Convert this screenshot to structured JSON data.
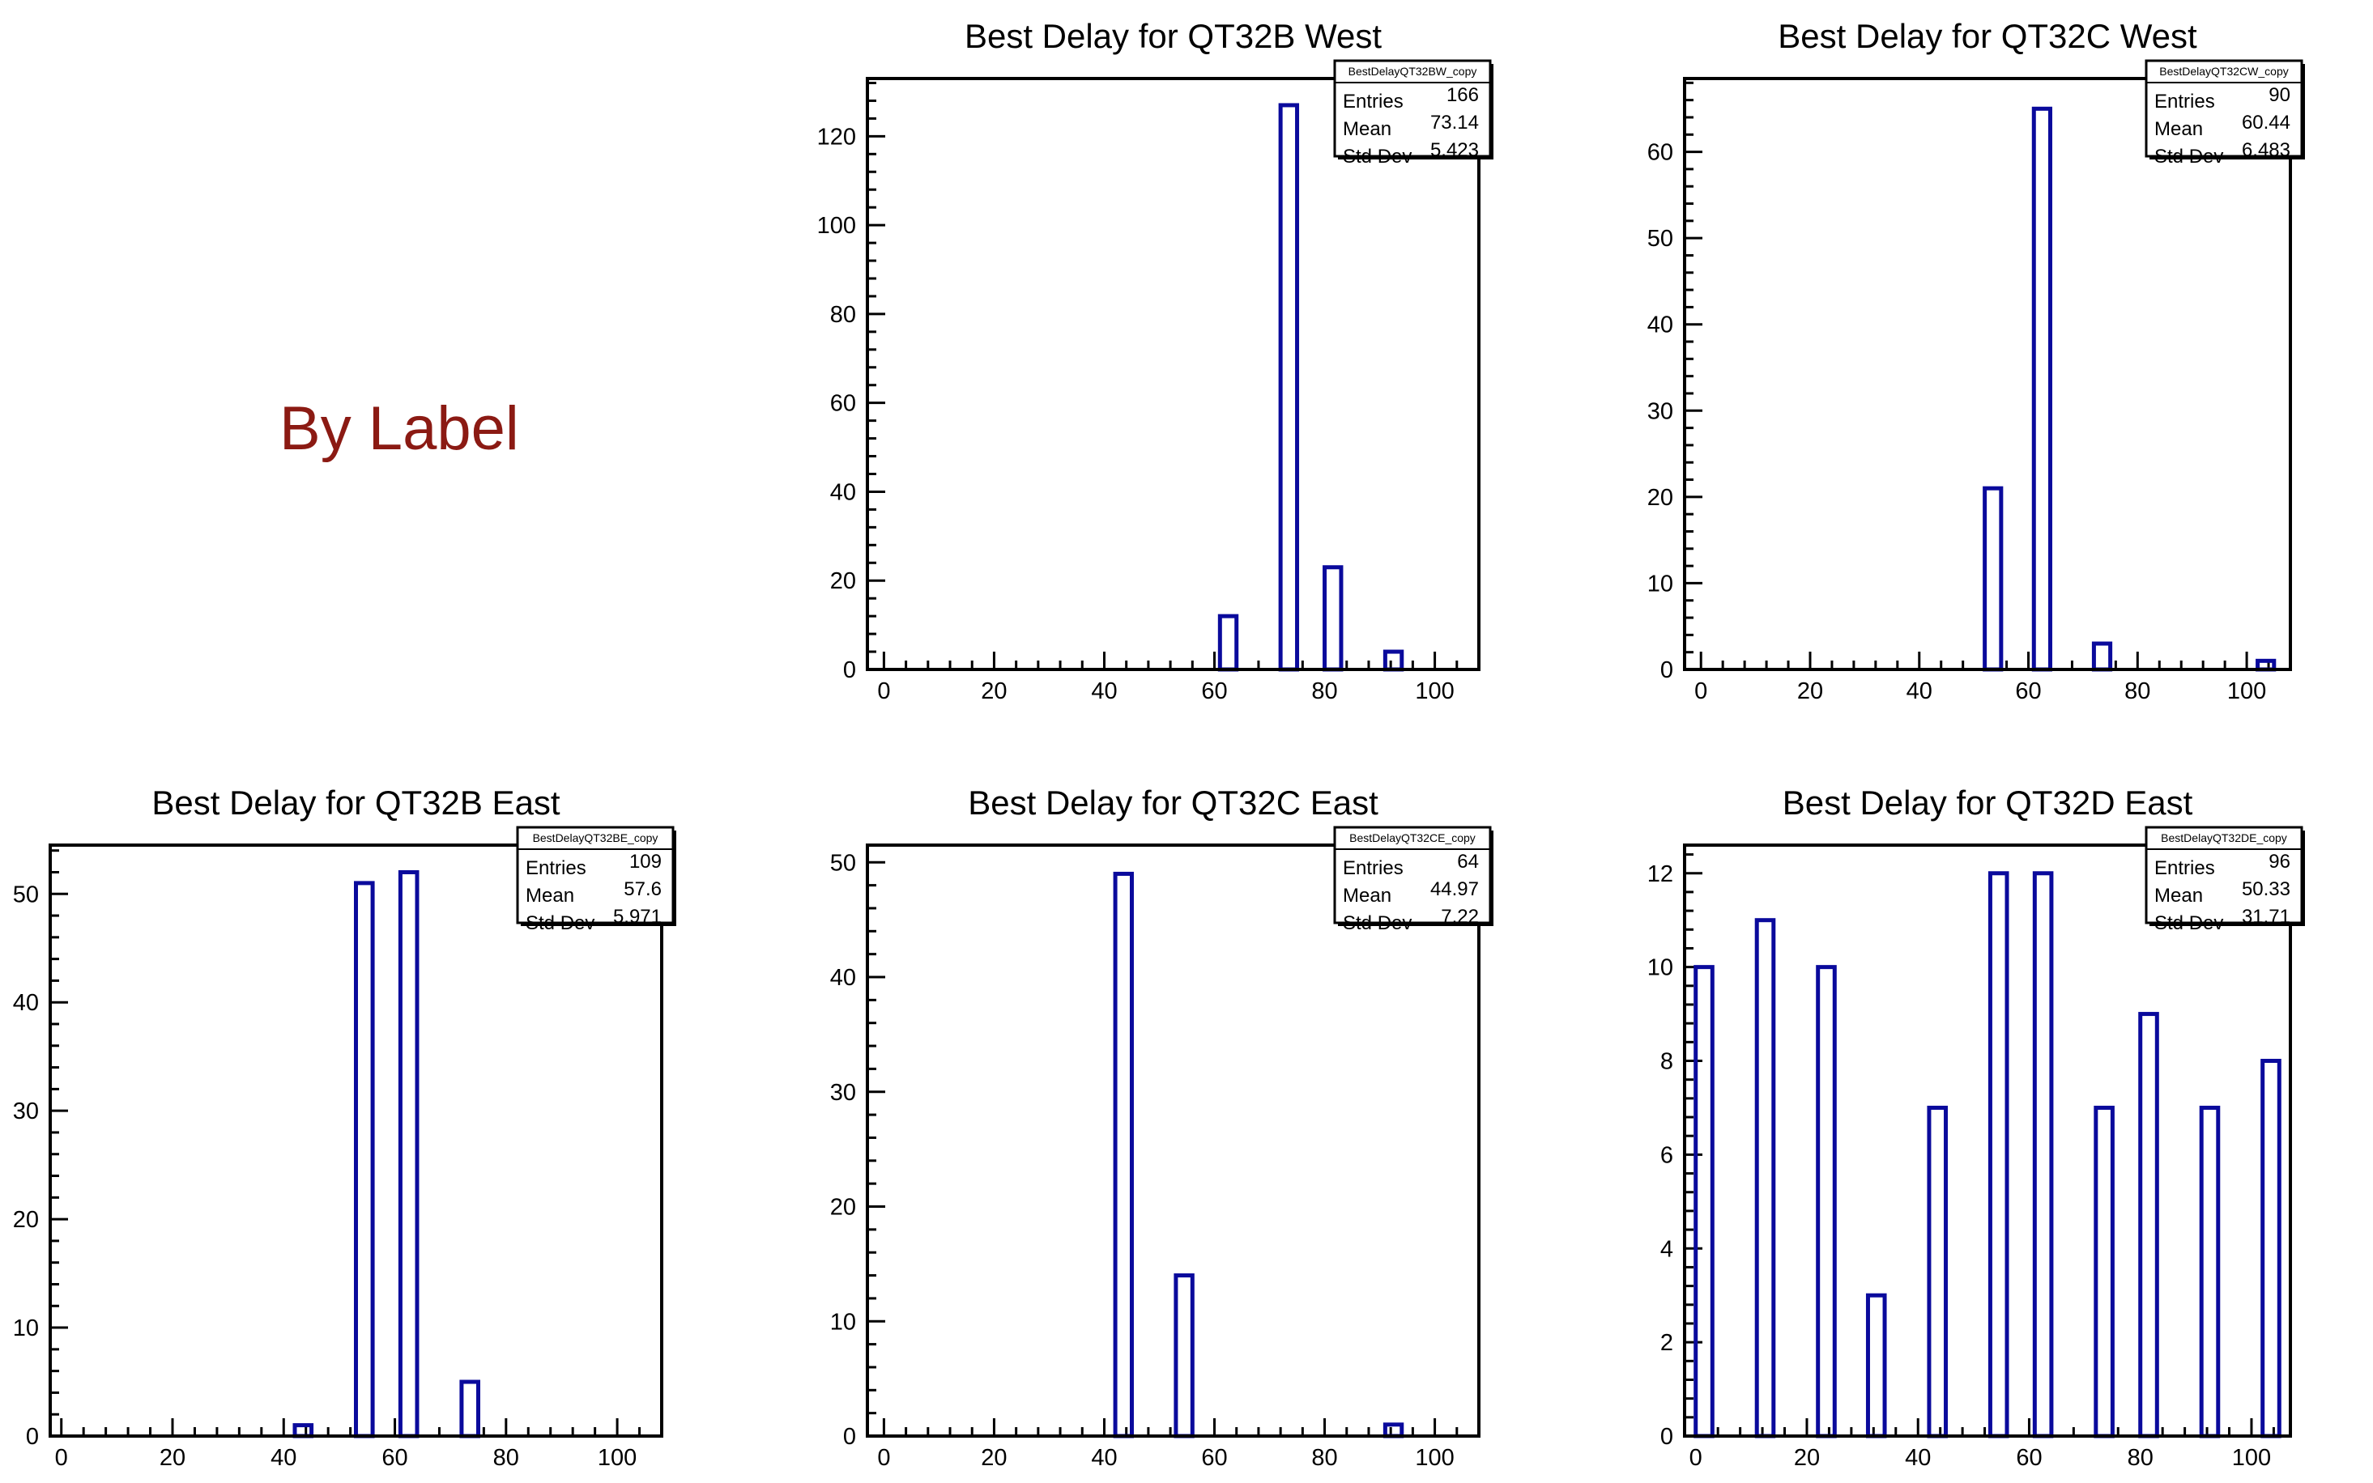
{
  "page_label": "By Label",
  "colors": {
    "bar": "#0a0a9c",
    "frame": "#000000",
    "label": "#8b1a13"
  },
  "chart_data": [
    {
      "type": "bar",
      "title": "Best Delay for QT32B West",
      "stats": {
        "name": "BestDelayQT32BW_copy",
        "entries": "166",
        "mean": "73.14",
        "std_dev": "5.423"
      },
      "xlim": [
        -3,
        108
      ],
      "ylim": [
        0,
        133
      ],
      "xticks": [
        0,
        20,
        40,
        60,
        80,
        100
      ],
      "yticks": [
        0,
        20,
        40,
        60,
        80,
        100,
        120
      ],
      "bars": [
        {
          "x0": 61,
          "x1": 64,
          "y": 12
        },
        {
          "x0": 72,
          "x1": 75,
          "y": 127
        },
        {
          "x0": 80,
          "x1": 83,
          "y": 23
        },
        {
          "x0": 91,
          "x1": 94,
          "y": 4
        }
      ]
    },
    {
      "type": "bar",
      "title": "Best Delay for QT32C West",
      "stats": {
        "name": "BestDelayQT32CW_copy",
        "entries": "90",
        "mean": "60.44",
        "std_dev": "6.483"
      },
      "xlim": [
        -3,
        108
      ],
      "ylim": [
        0,
        68.5
      ],
      "xticks": [
        0,
        20,
        40,
        60,
        80,
        100
      ],
      "yticks": [
        0,
        10,
        20,
        30,
        40,
        50,
        60
      ],
      "bars": [
        {
          "x0": 52,
          "x1": 55,
          "y": 21
        },
        {
          "x0": 61,
          "x1": 64,
          "y": 65
        },
        {
          "x0": 72,
          "x1": 75,
          "y": 3
        },
        {
          "x0": 102,
          "x1": 105,
          "y": 1
        }
      ]
    },
    {
      "type": "bar",
      "title": "Best Delay for QT32B East",
      "stats": {
        "name": "BestDelayQT32BE_copy",
        "entries": "109",
        "mean": "57.6",
        "std_dev": "5.971"
      },
      "xlim": [
        -2,
        108
      ],
      "ylim": [
        0,
        54.5
      ],
      "xticks": [
        0,
        20,
        40,
        60,
        80,
        100
      ],
      "yticks": [
        0,
        10,
        20,
        30,
        40,
        50
      ],
      "bars": [
        {
          "x0": 42,
          "x1": 45,
          "y": 1
        },
        {
          "x0": 53,
          "x1": 56,
          "y": 51
        },
        {
          "x0": 61,
          "x1": 64,
          "y": 52
        },
        {
          "x0": 72,
          "x1": 75,
          "y": 5
        }
      ]
    },
    {
      "type": "bar",
      "title": "Best Delay for QT32C East",
      "stats": {
        "name": "BestDelayQT32CE_copy",
        "entries": "64",
        "mean": "44.97",
        "std_dev": "7.22"
      },
      "xlim": [
        -3,
        108
      ],
      "ylim": [
        0,
        51.5
      ],
      "xticks": [
        0,
        20,
        40,
        60,
        80,
        100
      ],
      "yticks": [
        0,
        10,
        20,
        30,
        40,
        50
      ],
      "bars": [
        {
          "x0": 42,
          "x1": 45,
          "y": 49
        },
        {
          "x0": 53,
          "x1": 56,
          "y": 14
        },
        {
          "x0": 91,
          "x1": 94,
          "y": 1
        }
      ]
    },
    {
      "type": "bar",
      "title": "Best Delay for QT32D East",
      "stats": {
        "name": "BestDelayQT32DE_copy",
        "entries": "96",
        "mean": "50.33",
        "std_dev": "31.71"
      },
      "xlim": [
        -2,
        107
      ],
      "ylim": [
        0,
        12.6
      ],
      "xticks": [
        0,
        20,
        40,
        60,
        80,
        100
      ],
      "yticks": [
        0,
        2,
        4,
        6,
        8,
        10,
        12
      ],
      "bars": [
        {
          "x0": 0,
          "x1": 3,
          "y": 10
        },
        {
          "x0": 11,
          "x1": 14,
          "y": 11
        },
        {
          "x0": 22,
          "x1": 25,
          "y": 10
        },
        {
          "x0": 31,
          "x1": 34,
          "y": 3
        },
        {
          "x0": 42,
          "x1": 45,
          "y": 7
        },
        {
          "x0": 53,
          "x1": 56,
          "y": 12
        },
        {
          "x0": 61,
          "x1": 64,
          "y": 12
        },
        {
          "x0": 72,
          "x1": 75,
          "y": 7
        },
        {
          "x0": 80,
          "x1": 83,
          "y": 9
        },
        {
          "x0": 91,
          "x1": 94,
          "y": 7
        },
        {
          "x0": 102,
          "x1": 105,
          "y": 8
        }
      ]
    }
  ]
}
